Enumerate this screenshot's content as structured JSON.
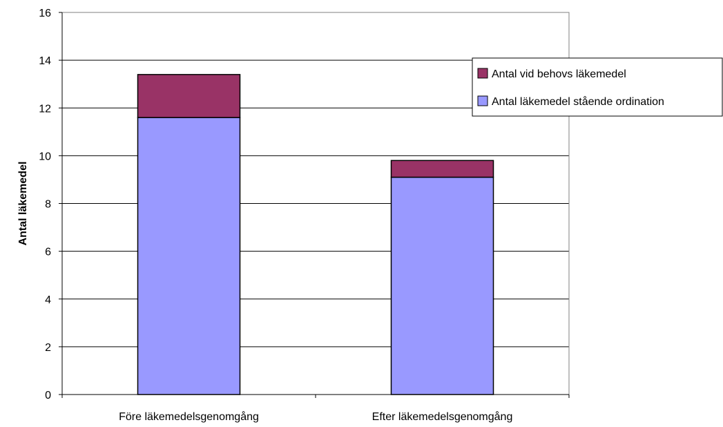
{
  "chart_data": {
    "type": "bar",
    "stacked": true,
    "title": "",
    "xlabel": "",
    "ylabel": "Antal läkemedel",
    "ylim": [
      0,
      16
    ],
    "yticks": [
      0,
      2,
      4,
      6,
      8,
      10,
      12,
      14,
      16
    ],
    "grid": true,
    "legend_position": "right",
    "categories": [
      "Före läkemedelsgenomgång",
      "Efter läkemedelsgenomgång"
    ],
    "series": [
      {
        "name": "Antal läkemedel stående ordination",
        "values": [
          11.6,
          9.1
        ],
        "color": "#9999ff"
      },
      {
        "name": "Antal vid behovs läkemedel",
        "values": [
          1.8,
          0.7
        ],
        "color": "#993366"
      }
    ],
    "legend_order": [
      1,
      0
    ]
  }
}
